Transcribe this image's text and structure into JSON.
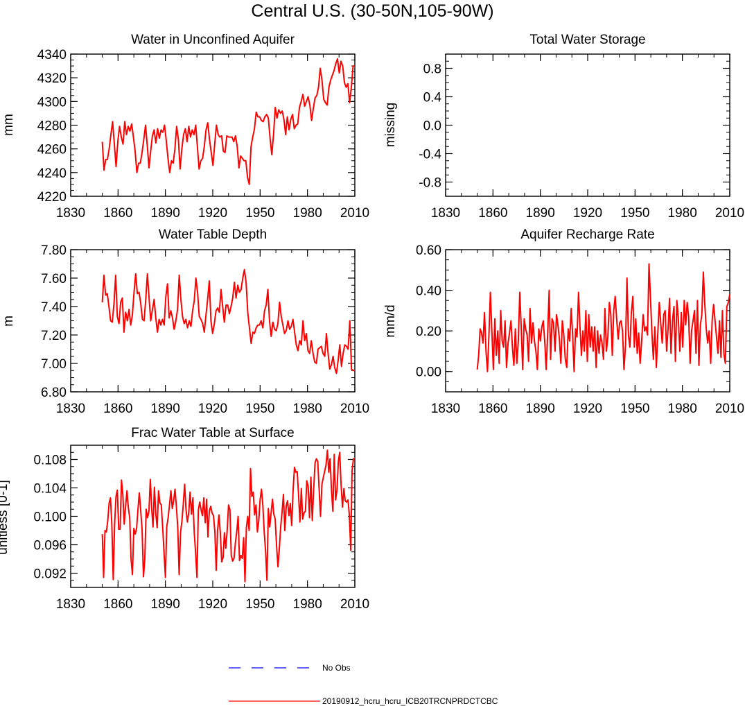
{
  "title": "Central U.S. (30-50N,105-90W)",
  "legend": [
    {
      "label": "No Obs",
      "color": "#0000ff",
      "dash": "dashed"
    },
    {
      "label": "20190912_hcru_hcru_ICB20TRCNPRDCTCBC",
      "color": "#ff0000",
      "dash": "solid"
    }
  ],
  "chart_data": [
    {
      "id": "unconfined",
      "type": "line",
      "title": "Water in Unconfined Aquifer",
      "xlabel": "",
      "ylabel": "mm",
      "xlim": [
        1830,
        2010
      ],
      "ylim": [
        4220,
        4340
      ],
      "xticks": [
        "1830",
        "1860",
        "1890",
        "1920",
        "1950",
        "1980",
        "2010"
      ],
      "yticks": [
        "4220",
        "4240",
        "4260",
        "4280",
        "4300",
        "4320",
        "4340"
      ],
      "series": [
        {
          "name": "20190912_hcru_hcru_ICB20TRCNPRDCTCBC",
          "color": "#ff0000",
          "x_start": 1850,
          "values": [
            4266,
            4242,
            4251,
            4251,
            4260,
            4272,
            4283,
            4264,
            4245,
            4266,
            4279,
            4270,
            4264,
            4283,
            4272,
            4279,
            4275,
            4281,
            4270,
            4258,
            4240,
            4248,
            4248,
            4257,
            4268,
            4280,
            4263,
            4244,
            4258,
            4271,
            4276,
            4265,
            4277,
            4269,
            4276,
            4274,
            4280,
            4267,
            4252,
            4240,
            4250,
            4248,
            4260,
            4279,
            4268,
            4243,
            4260,
            4272,
            4277,
            4266,
            4279,
            4270,
            4276,
            4272,
            4280,
            4262,
            4243,
            4250,
            4252,
            4262,
            4276,
            4282,
            4268,
            4257,
            4246,
            4264,
            4280,
            4272,
            4270,
            4271,
            4258,
            4257,
            4271,
            4270,
            4270,
            4270,
            4266,
            4271,
            4262,
            4244,
            4254,
            4252,
            4250,
            4250,
            4236,
            4230,
            4262,
            4270,
            4277,
            4291,
            4287,
            4287,
            4284,
            4283,
            4287,
            4289,
            4286,
            4269,
            4255,
            4272,
            4295,
            4286,
            4293,
            4290,
            4292,
            4285,
            4272,
            4287,
            4276,
            4285,
            4289,
            4277,
            4280,
            4281,
            4295,
            4300,
            4306,
            4296,
            4300,
            4304,
            4297,
            4284,
            4294,
            4303,
            4305,
            4312,
            4328,
            4318,
            4302,
            4299,
            4297,
            4312,
            4318,
            4322,
            4326,
            4332,
            4336,
            4324,
            4334,
            4330,
            4316,
            4312,
            4315,
            4299,
            4312,
            4330,
            4330
          ]
        }
      ]
    },
    {
      "id": "tws",
      "type": "line",
      "title": "Total Water Storage",
      "xlabel": "",
      "ylabel": "missing",
      "xlim": [
        1830,
        2010
      ],
      "ylim": [
        -1,
        1
      ],
      "xticks": [
        "1830",
        "1860",
        "1890",
        "1920",
        "1950",
        "1980",
        "2010"
      ],
      "yticks": [
        "-0.8",
        "-0.4",
        "0.0",
        "0.4",
        "0.8"
      ],
      "series": []
    },
    {
      "id": "wtd",
      "type": "line",
      "title": "Water Table Depth",
      "xlabel": "",
      "ylabel": "m",
      "xlim": [
        1830,
        2010
      ],
      "ylim": [
        6.8,
        7.8
      ],
      "xticks": [
        "1830",
        "1860",
        "1890",
        "1920",
        "1950",
        "1980",
        "2010"
      ],
      "yticks": [
        "6.80",
        "7.00",
        "7.20",
        "7.40",
        "7.60",
        "7.80"
      ],
      "series": [
        {
          "name": "20190912_hcru_hcru_ICB20TRCNPRDCTCBC",
          "color": "#ff0000",
          "x_start": 1850,
          "values": [
            7.43,
            7.62,
            7.48,
            7.49,
            7.4,
            7.3,
            7.29,
            7.42,
            7.62,
            7.33,
            7.28,
            7.43,
            7.46,
            7.22,
            7.36,
            7.3,
            7.38,
            7.27,
            7.34,
            7.5,
            7.63,
            7.49,
            7.5,
            7.42,
            7.31,
            7.3,
            7.45,
            7.63,
            7.46,
            7.3,
            7.38,
            7.45,
            7.32,
            7.22,
            7.31,
            7.27,
            7.31,
            7.27,
            7.47,
            7.56,
            7.32,
            7.37,
            7.32,
            7.24,
            7.3,
            7.38,
            7.62,
            7.45,
            7.33,
            7.28,
            7.31,
            7.25,
            7.3,
            7.26,
            7.37,
            7.44,
            7.6,
            7.5,
            7.33,
            7.31,
            7.28,
            7.22,
            7.34,
            7.45,
            7.58,
            7.3,
            7.21,
            7.28,
            7.37,
            7.39,
            7.36,
            7.52,
            7.4,
            7.29,
            7.41,
            7.41,
            7.35,
            7.4,
            7.46,
            7.57,
            7.46,
            7.55,
            7.5,
            7.52,
            7.6,
            7.66,
            7.57,
            7.36,
            7.25,
            7.14,
            7.22,
            7.21,
            7.25,
            7.27,
            7.27,
            7.3,
            7.25,
            7.37,
            7.41,
            7.52,
            7.3,
            7.19,
            7.29,
            7.24,
            7.23,
            7.28,
            7.43,
            7.33,
            7.27,
            7.21,
            7.23,
            7.3,
            7.24,
            7.26,
            7.31,
            7.22,
            7.13,
            7.09,
            7.16,
            7.13,
            7.3,
            7.16,
            7.21,
            7.09,
            7.07,
            7.16,
            7.07,
            7.01,
            7.0,
            7.1,
            7.11,
            7.12,
            7.07,
            7.05,
            7.21,
            7.07,
            6.96,
            6.99,
            7.05,
            6.97,
            6.93,
            7.02,
            7.13,
            6.98,
            7.07,
            7.13,
            7.12,
            7.1,
            7.3,
            6.96,
            6.95,
            6.95
          ]
        }
      ]
    },
    {
      "id": "recharge",
      "type": "line",
      "title": "Aquifer Recharge Rate",
      "xlabel": "",
      "ylabel": "mm/d",
      "xlim": [
        1830,
        2010
      ],
      "ylim": [
        -0.1,
        0.6
      ],
      "xticks": [
        "1830",
        "1860",
        "1890",
        "1920",
        "1950",
        "1980",
        "2010"
      ],
      "yticks": [
        "0.00",
        "0.20",
        "0.40",
        "0.60"
      ],
      "series": [
        {
          "name": "20190912_hcru_hcru_ICB20TRCNPRDCTCBC",
          "color": "#ff0000",
          "x_start": 1850,
          "values": [
            0.01,
            0.08,
            0.21,
            0.19,
            0.14,
            0.29,
            0.1,
            0.0,
            0.18,
            0.39,
            0.2,
            0.01,
            0.26,
            0.08,
            0.2,
            0.04,
            0.3,
            0.15,
            0.12,
            0.25,
            0.02,
            0.14,
            0.19,
            0.25,
            0.12,
            0.03,
            0.21,
            0.04,
            0.15,
            0.39,
            0.22,
            0.01,
            0.26,
            0.21,
            0.18,
            0.05,
            0.31,
            0.14,
            0.24,
            0.15,
            0.1,
            0.01,
            0.21,
            0.15,
            0.22,
            0.25,
            0.15,
            0.01,
            0.19,
            0.4,
            0.06,
            0.26,
            0.24,
            0.1,
            0.28,
            0.23,
            0.16,
            0.04,
            0.25,
            0.18,
            0.06,
            0.02,
            0.21,
            0.15,
            0.31,
            0.18,
            0.0,
            0.21,
            0.17,
            0.39,
            0.22,
            0.08,
            0.2,
            0.1,
            0.3,
            0.05,
            0.28,
            0.12,
            0.22,
            0.1,
            0.22,
            0.02,
            0.2,
            0.09,
            0.18,
            0.14,
            0.06,
            0.31,
            0.1,
            0.17,
            0.34,
            0.28,
            0.08,
            0.3,
            0.37,
            0.26,
            0.16,
            0.24,
            0.25,
            0.2,
            0.01,
            0.13,
            0.46,
            0.18,
            0.12,
            0.29,
            0.37,
            0.12,
            0.26,
            0.09,
            0.19,
            0.04,
            0.15,
            0.28,
            0.2,
            0.22,
            0.18,
            0.53,
            0.36,
            0.19,
            0.06,
            0.22,
            0.02,
            0.19,
            0.34,
            0.24,
            0.14,
            0.28,
            0.3,
            0.1,
            0.21,
            0.36,
            0.09,
            0.25,
            0.32,
            0.05,
            0.35,
            0.26,
            0.1,
            0.29,
            0.12,
            0.35,
            0.23,
            0.34,
            0.27,
            0.04,
            0.2,
            0.25,
            0.3,
            0.09,
            0.35,
            0.03,
            0.23,
            0.28,
            0.49,
            0.33,
            0.21,
            0.14,
            0.2,
            0.04,
            0.25,
            0.33,
            0.25,
            0.17,
            0.09,
            0.25,
            0.07,
            0.3,
            0.09,
            0.04,
            0.32,
            0.34,
            0.38
          ]
        }
      ]
    },
    {
      "id": "frac",
      "type": "line",
      "title": "Frac Water Table at Surface",
      "xlabel": "",
      "ylabel": "unitless [0-1]",
      "xlim": [
        1830,
        2010
      ],
      "ylim": [
        0.09,
        0.11
      ],
      "xticks": [
        "1830",
        "1860",
        "1890",
        "1920",
        "1950",
        "1980",
        "2010"
      ],
      "yticks": [
        "0.092",
        "0.096",
        "0.100",
        "0.104",
        "0.108"
      ],
      "series": [
        {
          "name": "20190912_hcru_hcru_ICB20TRCNPRDCTCBC",
          "color": "#ff0000",
          "x_start": 1850,
          "values": [
            0.0975,
            0.0914,
            0.098,
            0.0978,
            0.0994,
            0.1019,
            0.1026,
            0.0988,
            0.0911,
            0.0989,
            0.1028,
            0.1037,
            0.0982,
            0.0982,
            0.1051,
            0.103,
            0.0989,
            0.1013,
            0.1036,
            0.1012,
            0.0998,
            0.094,
            0.0918,
            0.0983,
            0.0975,
            0.0983,
            0.101,
            0.1033,
            0.1008,
            0.0982,
            0.0915,
            0.0941,
            0.101,
            0.0998,
            0.1007,
            0.1052,
            0.101,
            0.0985,
            0.1041,
            0.1004,
            0.0984,
            0.1036,
            0.1019,
            0.1016,
            0.0985,
            0.0949,
            0.0914,
            0.0985,
            0.0998,
            0.1016,
            0.1036,
            0.1011,
            0.1022,
            0.1038,
            0.1014,
            0.0984,
            0.0918,
            0.0977,
            0.0992,
            0.1016,
            0.1045,
            0.101,
            0.0992,
            0.1005,
            0.1034,
            0.1003,
            0.1026,
            0.0977,
            0.095,
            0.0914,
            0.1009,
            0.102,
            0.1009,
            0.1001,
            0.1026,
            0.0991,
            0.1024,
            0.0971,
            0.1007,
            0.1014,
            0.1005,
            0.1001,
            0.0979,
            0.0924,
            0.098,
            0.1002,
            0.0977,
            0.0936,
            0.0942,
            0.0977,
            0.0955,
            0.098,
            0.1016,
            0.1009,
            0.0945,
            0.0937,
            0.0941,
            0.0963,
            0.0979,
            0.1,
            0.0938,
            0.0945,
            0.0941,
            0.097,
            0.0908,
            0.0984,
            0.1,
            0.098,
            0.1067,
            0.1028,
            0.1034,
            0.1002,
            0.1016,
            0.0978,
            0.0994,
            0.1023,
            0.1038,
            0.1015,
            0.0977,
            0.095,
            0.091,
            0.1011,
            0.0985,
            0.1005,
            0.1024,
            0.1003,
            0.0996,
            0.0958,
            0.0929,
            0.0955,
            0.0985,
            0.1006,
            0.1031,
            0.098,
            0.1014,
            0.1022,
            0.1001,
            0.1018,
            0.0987,
            0.1036,
            0.1069,
            0.1062,
            0.1063,
            0.1031,
            0.0992,
            0.1039,
            0.0996,
            0.1005,
            0.1007,
            0.105,
            0.1042,
            0.0998,
            0.1055,
            0.0994,
            0.1038,
            0.1075,
            0.1081,
            0.1077,
            0.1038,
            0.1,
            0.1045,
            0.1054,
            0.1063,
            0.1072,
            0.1093,
            0.1062,
            0.1081,
            0.1037,
            0.1007,
            0.1087,
            0.1023,
            0.1037,
            0.1077,
            0.109,
            0.1044,
            0.1013,
            0.1039,
            0.1022,
            0.102,
            0.1023,
            0.1002,
            0.0952,
            0.1064,
            0.1081,
            0.1081
          ]
        }
      ]
    }
  ]
}
